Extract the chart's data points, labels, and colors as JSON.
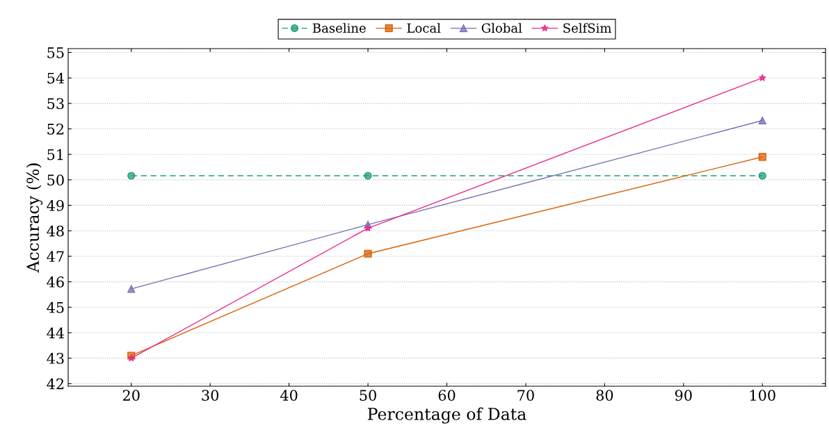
{
  "chart_data": {
    "type": "line",
    "xlabel": "Percentage of Data",
    "ylabel": "Accuracy (%)",
    "x": [
      20,
      50,
      100
    ],
    "series": [
      {
        "name": "Baseline",
        "color": "#1b9e77",
        "values": [
          50.16,
          50.16,
          50.16
        ],
        "marker": "circle",
        "line_style": "dashed"
      },
      {
        "name": "Local",
        "color": "#d95f02",
        "values": [
          43.1,
          47.1,
          50.9
        ],
        "marker": "square",
        "line_style": "solid"
      },
      {
        "name": "Global",
        "color": "#7570b3",
        "values": [
          45.72,
          48.24,
          52.33
        ],
        "marker": "triangle",
        "line_style": "solid"
      },
      {
        "name": "SelfSim",
        "color": "#e7298a",
        "values": [
          43.0,
          48.1,
          54.0
        ],
        "marker": "star",
        "line_style": "solid"
      }
    ],
    "xlim": [
      12,
      108
    ],
    "xticks": [
      20,
      30,
      40,
      50,
      60,
      70,
      80,
      90,
      100
    ],
    "ylim": [
      41.9,
      55.15
    ],
    "yticks": [
      42,
      43,
      44,
      45,
      46,
      47,
      48,
      49,
      50,
      51,
      52,
      53,
      54,
      55
    ],
    "grid": "y",
    "legend": "top"
  }
}
